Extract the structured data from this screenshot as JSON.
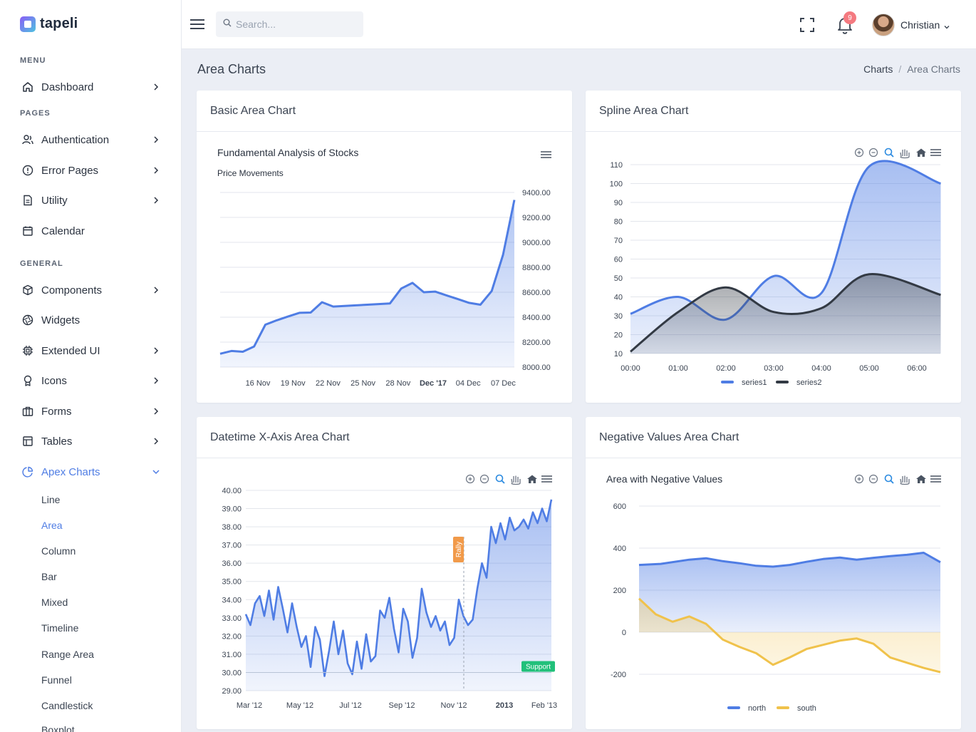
{
  "brand": {
    "name": "tapeli"
  },
  "sidebar": {
    "sections": {
      "menu": "MENU",
      "pages": "PAGES",
      "general": "GENERAL"
    },
    "items": {
      "dashboard": "Dashboard",
      "authentication": "Authentication",
      "error_pages": "Error Pages",
      "utility": "Utility",
      "calendar": "Calendar",
      "components": "Components",
      "widgets": "Widgets",
      "extended_ui": "Extended UI",
      "icons": "Icons",
      "forms": "Forms",
      "tables": "Tables",
      "apex_charts": "Apex Charts"
    },
    "sub_items": [
      "Line",
      "Area",
      "Column",
      "Bar",
      "Mixed",
      "Timeline",
      "Range Area",
      "Funnel",
      "Candlestick",
      "Boxplot"
    ],
    "active_sub": "Area",
    "accent_color": "#4f7de4"
  },
  "topbar": {
    "search_placeholder": "Search...",
    "notification_count": "9",
    "user_name": "Christian"
  },
  "page": {
    "title": "Area Charts",
    "breadcrumb": [
      "Charts",
      "Area Charts"
    ]
  },
  "cards": {
    "basic": "Basic Area Chart",
    "spline": "Spline Area Chart",
    "datetime": "Datetime X-Axis Area Chart",
    "negative": "Negative Values Area Chart"
  },
  "chart_data": [
    {
      "type": "area",
      "title": "Fundamental Analysis of Stocks",
      "subtitle": "Price Movements",
      "x_tick_labels": [
        "16 Nov",
        "19 Nov",
        "22 Nov",
        "25 Nov",
        "28 Nov",
        "Dec '17",
        "04 Dec",
        "07 Dec"
      ],
      "y_tick_labels": [
        "9400.00",
        "9200.00",
        "9000.00",
        "8800.00",
        "8600.00",
        "8400.00",
        "8200.00",
        "8000.00"
      ],
      "ylim": [
        8000,
        9400
      ],
      "series": [
        {
          "values": [
            8107,
            8129,
            8123,
            8165,
            8340,
            8375,
            8405,
            8435,
            8437,
            8520,
            8485,
            8490,
            8495,
            8500,
            8505,
            8510,
            8630,
            8675,
            8600,
            8605,
            8575,
            8545,
            8515,
            8500,
            8610,
            8900,
            9340
          ]
        }
      ],
      "color": "#4f7de4"
    },
    {
      "type": "area",
      "x_tick_labels": [
        "00:00",
        "01:00",
        "02:00",
        "03:00",
        "04:00",
        "05:00",
        "06:00"
      ],
      "y_tick_labels": [
        "110",
        "100",
        "90",
        "80",
        "70",
        "60",
        "50",
        "40",
        "30",
        "20",
        "10"
      ],
      "ylim": [
        10,
        110
      ],
      "series": [
        {
          "name": "series1",
          "x": [
            0,
            1,
            2,
            3,
            4,
            5,
            6.5
          ],
          "values": [
            31,
            40,
            28,
            51,
            42,
            109,
            100
          ],
          "color": "#4f7de4"
        },
        {
          "name": "series2",
          "x": [
            0,
            1,
            2,
            3,
            4,
            5,
            6.5
          ],
          "values": [
            11,
            32,
            45,
            32,
            34,
            52,
            41
          ],
          "color": "#333a44"
        }
      ]
    },
    {
      "type": "area",
      "x_tick_labels": [
        "Mar '12",
        "May '12",
        "Jul '12",
        "Sep '12",
        "Nov '12",
        "2013",
        "Feb '13"
      ],
      "y_tick_labels": [
        "40.00",
        "39.00",
        "38.00",
        "37.00",
        "36.00",
        "35.00",
        "34.00",
        "33.00",
        "32.00",
        "31.00",
        "30.00",
        "29.00"
      ],
      "ylim": [
        29,
        40
      ],
      "annotations": {
        "vertical": "Rally",
        "horizontal": "Support"
      },
      "series": [
        {
          "values": [
            33.2,
            32.6,
            33.8,
            34.2,
            33.1,
            34.5,
            32.9,
            34.7,
            33.5,
            32.2,
            33.8,
            32.5,
            31.4,
            32.0,
            30.3,
            32.5,
            31.8,
            29.8,
            31.2,
            32.8,
            31.0,
            32.3,
            30.5,
            29.9,
            31.7,
            30.2,
            32.1,
            30.6,
            30.9,
            33.4,
            33.0,
            34.1,
            32.4,
            31.1,
            33.5,
            32.8,
            30.8,
            31.9,
            34.6,
            33.3,
            32.5,
            33.1,
            32.3,
            32.8,
            31.5,
            31.9,
            34.0,
            33.1,
            32.6,
            32.9,
            34.6,
            36.0,
            35.2,
            38.0,
            37.1,
            38.2,
            37.3,
            38.5,
            37.8,
            38.0,
            38.4,
            37.9,
            38.8,
            38.2,
            39.0,
            38.3,
            39.5
          ]
        }
      ],
      "color": "#4f7de4"
    },
    {
      "type": "area",
      "title": "Area with Negative Values",
      "x": [
        0,
        1,
        2,
        3,
        4,
        5,
        6,
        7,
        8,
        9,
        10,
        11,
        12,
        13,
        14,
        15,
        16,
        17,
        18
      ],
      "y_tick_labels": [
        "600",
        "400",
        "200",
        "0",
        "-200"
      ],
      "ylim": [
        -200,
        600
      ],
      "series": [
        {
          "name": "north",
          "x": [
            0,
            1.3,
            3,
            4,
            5,
            6,
            7,
            8,
            9,
            10,
            11,
            12,
            13,
            14,
            15,
            16,
            17,
            18
          ],
          "values": [
            320,
            325,
            345,
            352,
            338,
            328,
            316,
            312,
            320,
            335,
            348,
            355,
            345,
            354,
            362,
            368,
            378,
            333
          ],
          "color": "#4f7de4"
        },
        {
          "name": "south",
          "x": [
            0,
            1,
            2,
            3,
            4,
            5,
            6,
            7,
            8,
            9,
            10,
            11,
            12,
            13,
            14,
            15,
            16,
            17,
            18
          ],
          "values": [
            160,
            85,
            50,
            75,
            40,
            -35,
            -70,
            -100,
            -155,
            -120,
            -80,
            -60,
            -40,
            -30,
            -55,
            -120,
            -145,
            -170,
            -190
          ],
          "color": "#f0c24b"
        }
      ]
    }
  ]
}
